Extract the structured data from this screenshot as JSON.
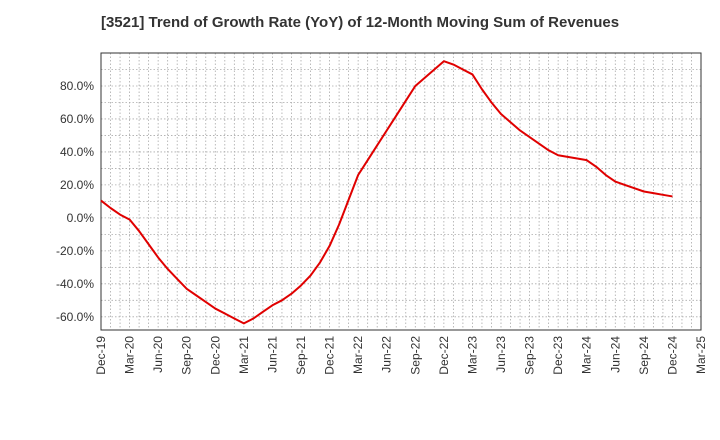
{
  "chart_data": {
    "type": "line",
    "title": "[3521]  Trend of Growth Rate (YoY) of 12-Month Moving Sum of Revenues",
    "xlabel": "",
    "ylabel": "",
    "x_ticks": [
      "Dec-19",
      "Mar-20",
      "Jun-20",
      "Sep-20",
      "Dec-20",
      "Mar-21",
      "Jun-21",
      "Sep-21",
      "Dec-21",
      "Mar-22",
      "Jun-22",
      "Sep-22",
      "Dec-22",
      "Mar-23",
      "Jun-23",
      "Sep-23",
      "Dec-23",
      "Mar-24",
      "Jun-24",
      "Sep-24",
      "Dec-24",
      "Mar-25"
    ],
    "y_ticks": [
      "80.0%",
      "60.0%",
      "40.0%",
      "20.0%",
      "0.0%",
      "-20.0%",
      "-40.0%",
      "-60.0%"
    ],
    "y_tick_values": [
      80,
      60,
      40,
      20,
      0,
      -20,
      -40,
      -60
    ],
    "ylim": [
      -68,
      100
    ],
    "grid": true,
    "line_color": "#e00000",
    "series": [
      {
        "x": [
          "Dec-19",
          "Jan-20",
          "Feb-20",
          "Mar-20",
          "Apr-20",
          "May-20",
          "Jun-20",
          "Jul-20",
          "Aug-20",
          "Sep-20",
          "Oct-20",
          "Nov-20",
          "Dec-20",
          "Jan-21",
          "Feb-21",
          "Mar-21",
          "Apr-21",
          "May-21",
          "Jun-21",
          "Jul-21",
          "Aug-21",
          "Sep-21",
          "Oct-21",
          "Nov-21",
          "Dec-21",
          "Jan-22",
          "Feb-22",
          "Mar-22",
          "Apr-22",
          "May-22",
          "Jun-22",
          "Jul-22",
          "Aug-22",
          "Sep-22",
          "Oct-22",
          "Nov-22",
          "Dec-22",
          "Jan-23",
          "Feb-23",
          "Mar-23",
          "Apr-23",
          "May-23",
          "Jun-23",
          "Jul-23",
          "Aug-23",
          "Sep-23",
          "Oct-23",
          "Nov-23",
          "Dec-23",
          "Jan-24",
          "Feb-24",
          "Mar-24",
          "Apr-24",
          "May-24",
          "Jun-24",
          "Jul-24",
          "Aug-24",
          "Sep-24",
          "Oct-24",
          "Nov-24",
          "Dec-24"
        ],
        "values": [
          10.5,
          6,
          2,
          -1,
          -8,
          -16,
          -24,
          -31,
          -37,
          -43,
          -47,
          -51,
          -55,
          -58,
          -61,
          -64,
          -61,
          -57,
          -53,
          -50,
          -46,
          -41,
          -35,
          -27,
          -17,
          -4,
          11,
          26,
          35,
          44,
          53,
          62,
          71,
          80,
          85,
          90,
          95,
          93,
          90,
          87,
          78,
          70,
          63,
          58,
          53,
          49,
          45,
          41,
          38,
          37,
          36,
          35,
          31,
          26,
          22,
          20,
          18,
          16,
          15,
          14,
          13
        ]
      }
    ]
  }
}
